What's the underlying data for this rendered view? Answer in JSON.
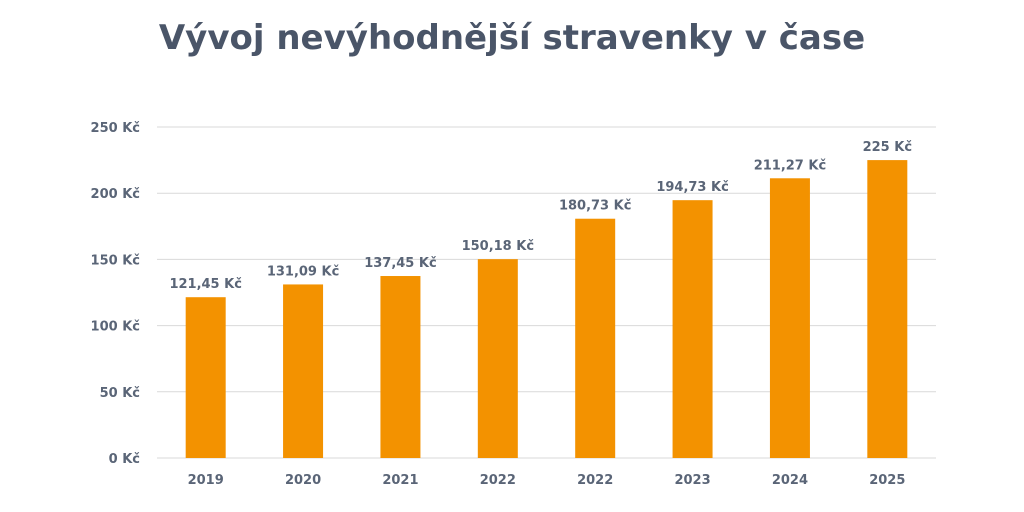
{
  "chart_data": {
    "type": "bar",
    "title": "Vývoj nevýhodnější stravenky v čase",
    "categories": [
      "2019",
      "2020",
      "2021",
      "2022",
      "2022",
      "2023",
      "2024",
      "2025"
    ],
    "values": [
      121.45,
      131.09,
      137.45,
      150.18,
      180.73,
      194.73,
      211.27,
      225
    ],
    "data_labels": [
      "121,45 Kč",
      "131,09 Kč",
      "137,45 Kč",
      "150,18 Kč",
      "180,73 Kč",
      "194,73 Kč",
      "211,27 Kč",
      "225 Kč"
    ],
    "y_ticks": [
      0,
      50,
      100,
      150,
      200,
      250
    ],
    "y_tick_labels": [
      "0 Kč",
      "50 Kč",
      "100 Kč",
      "150 Kč",
      "200 Kč",
      "250 Kč"
    ],
    "ylim": [
      0,
      250
    ],
    "grid": true,
    "bar_color": "#f39200",
    "grid_color": "#d9d9d9",
    "text_color": "#5a6577"
  }
}
